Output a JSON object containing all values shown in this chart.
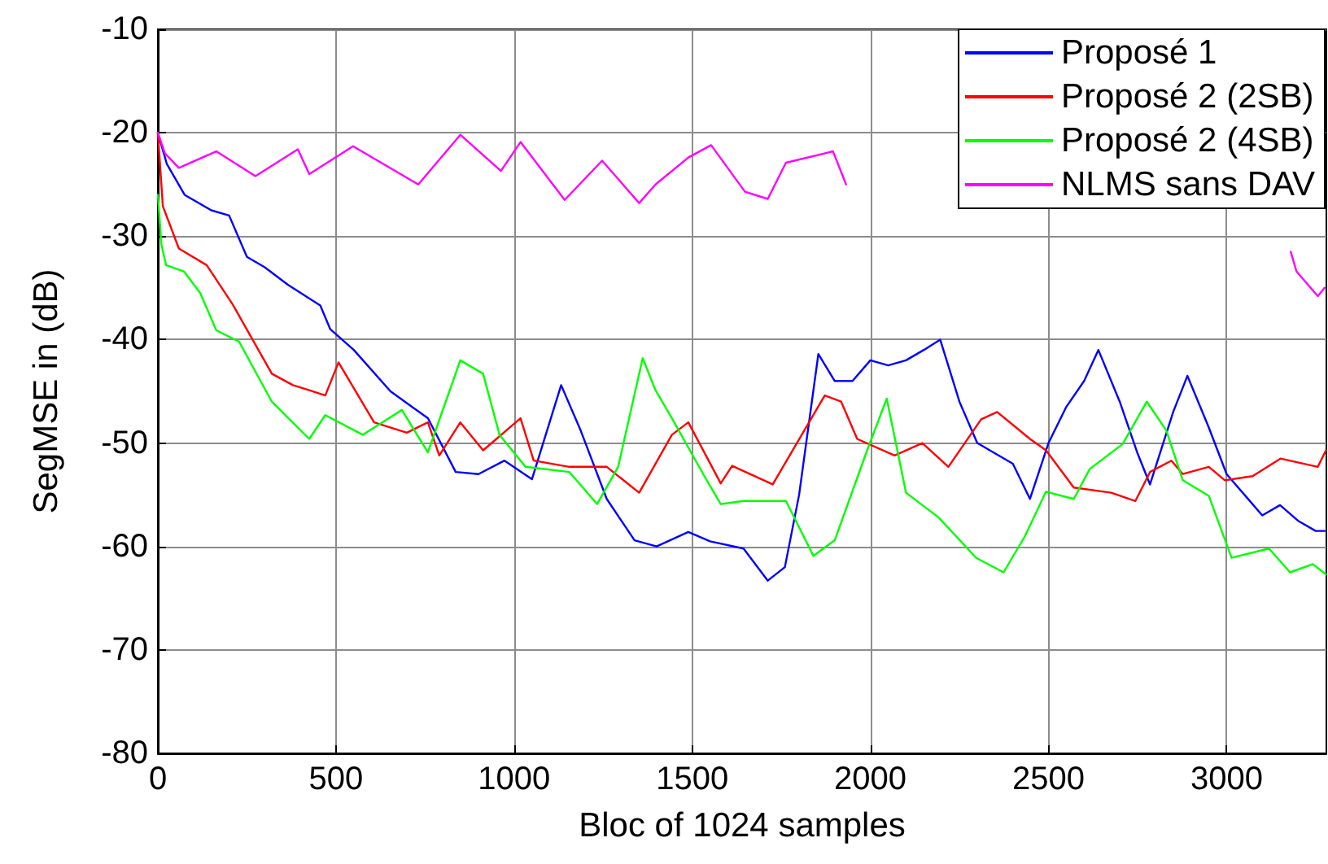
{
  "chart_data": {
    "type": "line",
    "xlabel": "Bloc of 1024 samples",
    "ylabel": "SegMSE in (dB)",
    "xlim": [
      0,
      3280
    ],
    "xticks": [
      0,
      500,
      1000,
      1500,
      2000,
      2500,
      3000
    ],
    "ylim": [
      -80,
      -10
    ],
    "yticks": [
      -80,
      -70,
      -60,
      -50,
      -40,
      -30,
      -20,
      -10
    ],
    "grid": true,
    "legend": "top right",
    "marker": "none",
    "line_style": "solid",
    "series": [
      {
        "name": "Proposé 1",
        "color": "#0000ff",
        "x": [
          0,
          25,
          75,
          150,
          200,
          250,
          300,
          365,
          456,
          484,
          550,
          653,
          758,
          836,
          900,
          973,
          1050,
          1132,
          1187,
          1260,
          1338,
          1400,
          1489,
          1550,
          1644,
          1712,
          1760,
          1800,
          1854,
          1900,
          1950,
          2000,
          2050,
          2100,
          2150,
          2196,
          2250,
          2300,
          2350,
          2400,
          2448,
          2500,
          2550,
          2600,
          2640,
          2700,
          2750,
          2785,
          2850,
          2890,
          2950,
          3000,
          3050,
          3100,
          3150,
          3200,
          3250,
          3275
        ],
        "values": [
          -20,
          -23,
          -26,
          -27.5,
          -28,
          -32,
          -33,
          -34.7,
          -36.7,
          -39,
          -41,
          -45,
          -47.6,
          -52.8,
          -53,
          -51.7,
          -53.5,
          -44.4,
          -48.8,
          -55.4,
          -59.4,
          -60,
          -58.6,
          -59.5,
          -60.2,
          -63.3,
          -62,
          -55,
          -41.4,
          -44,
          -44,
          -42,
          -42.5,
          -42,
          -41,
          -40,
          -46,
          -50,
          -51,
          -52,
          -55.4,
          -50,
          -46.5,
          -44,
          -41,
          -46,
          -51,
          -54,
          -47,
          -43.5,
          -48.5,
          -53,
          -55,
          -57,
          -56,
          -57.5,
          -58.5,
          -58.5
        ]
      },
      {
        "name": "Proposé 2 (2SB)",
        "color": "#ff0000",
        "x": [
          0,
          14,
          59,
          137,
          210,
          320,
          379,
          425,
          470,
          507,
          607,
          699,
          758,
          790,
          849,
          913,
          1018,
          1055,
          1155,
          1260,
          1351,
          1443,
          1489,
          1580,
          1612,
          1726,
          1872,
          1918,
          1963,
          2068,
          2146,
          2219,
          2311,
          2356,
          2448,
          2493,
          2571,
          2676,
          2744,
          2785,
          2845,
          2877,
          2950,
          2995,
          3073,
          3151,
          3256,
          3279
        ],
        "values": [
          -20,
          -27.1,
          -31.2,
          -32.8,
          -36.6,
          -43.3,
          -44.4,
          -44.9,
          -45.4,
          -42.2,
          -48,
          -49,
          -48,
          -51.2,
          -48,
          -50.7,
          -47.6,
          -51.7,
          -52.3,
          -52.3,
          -54.8,
          -49.2,
          -48,
          -53.9,
          -52.2,
          -54,
          -45.4,
          -46,
          -49.6,
          -51.2,
          -50,
          -52.3,
          -47.7,
          -47,
          -49.6,
          -50.7,
          -54.3,
          -54.8,
          -55.6,
          -52.8,
          -51.7,
          -53,
          -52.3,
          -53.6,
          -53.2,
          -51.5,
          -52.3,
          -50.7
        ]
      },
      {
        "name": "Proposé 2 (4SB)",
        "color": "#00ff00",
        "x": [
          0,
          10,
          23,
          73,
          119,
          164,
          228,
          320,
          425,
          470,
          575,
          685,
          758,
          849,
          913,
          959,
          1032,
          1155,
          1233,
          1292,
          1361,
          1397,
          1443,
          1534,
          1580,
          1644,
          1763,
          1840,
          1900,
          1991,
          2046,
          2100,
          2192,
          2297,
          2374,
          2434,
          2493,
          2571,
          2616,
          2708,
          2776,
          2831,
          2877,
          2950,
          3014,
          3119,
          3178,
          3242,
          3279
        ],
        "values": [
          -26,
          -30.8,
          -32.8,
          -33.4,
          -35.5,
          -39.1,
          -40.2,
          -46,
          -49.6,
          -47.3,
          -49.2,
          -46.8,
          -50.9,
          -42,
          -43.3,
          -49.2,
          -52.3,
          -52.8,
          -55.9,
          -52.3,
          -41.8,
          -44.9,
          -47.6,
          -53.2,
          -55.9,
          -55.6,
          -55.6,
          -60.9,
          -59.4,
          -50.7,
          -45.7,
          -54.8,
          -57.2,
          -61.1,
          -62.5,
          -59,
          -54.7,
          -55.4,
          -52.5,
          -50.1,
          -46,
          -48.8,
          -53.6,
          -55.1,
          -61.1,
          -60.2,
          -62.5,
          -61.7,
          -62.7
        ]
      },
      {
        "name": "NLMS sans DAV",
        "color": "#ff00ff",
        "x": [
          0,
          20,
          59,
          164,
          274,
          393,
          425,
          548,
          731,
          849,
          963,
          1018,
          1142,
          1247,
          1351,
          1397,
          1489,
          1553,
          1648,
          1712,
          1763,
          1895,
          1932,
          1960,
          3180,
          3196,
          3256,
          3275
        ],
        "values": [
          -20,
          -22,
          -23.4,
          -21.8,
          -24.2,
          -21.6,
          -24,
          -21.3,
          -25,
          -20.2,
          -23.7,
          -20.9,
          -26.5,
          -22.7,
          -26.8,
          -25,
          -22.4,
          -21.2,
          -25.7,
          -26.4,
          -22.9,
          -21.8,
          -25,
          null,
          -31.5,
          -33.4,
          -35.8,
          -35
        ]
      }
    ]
  }
}
